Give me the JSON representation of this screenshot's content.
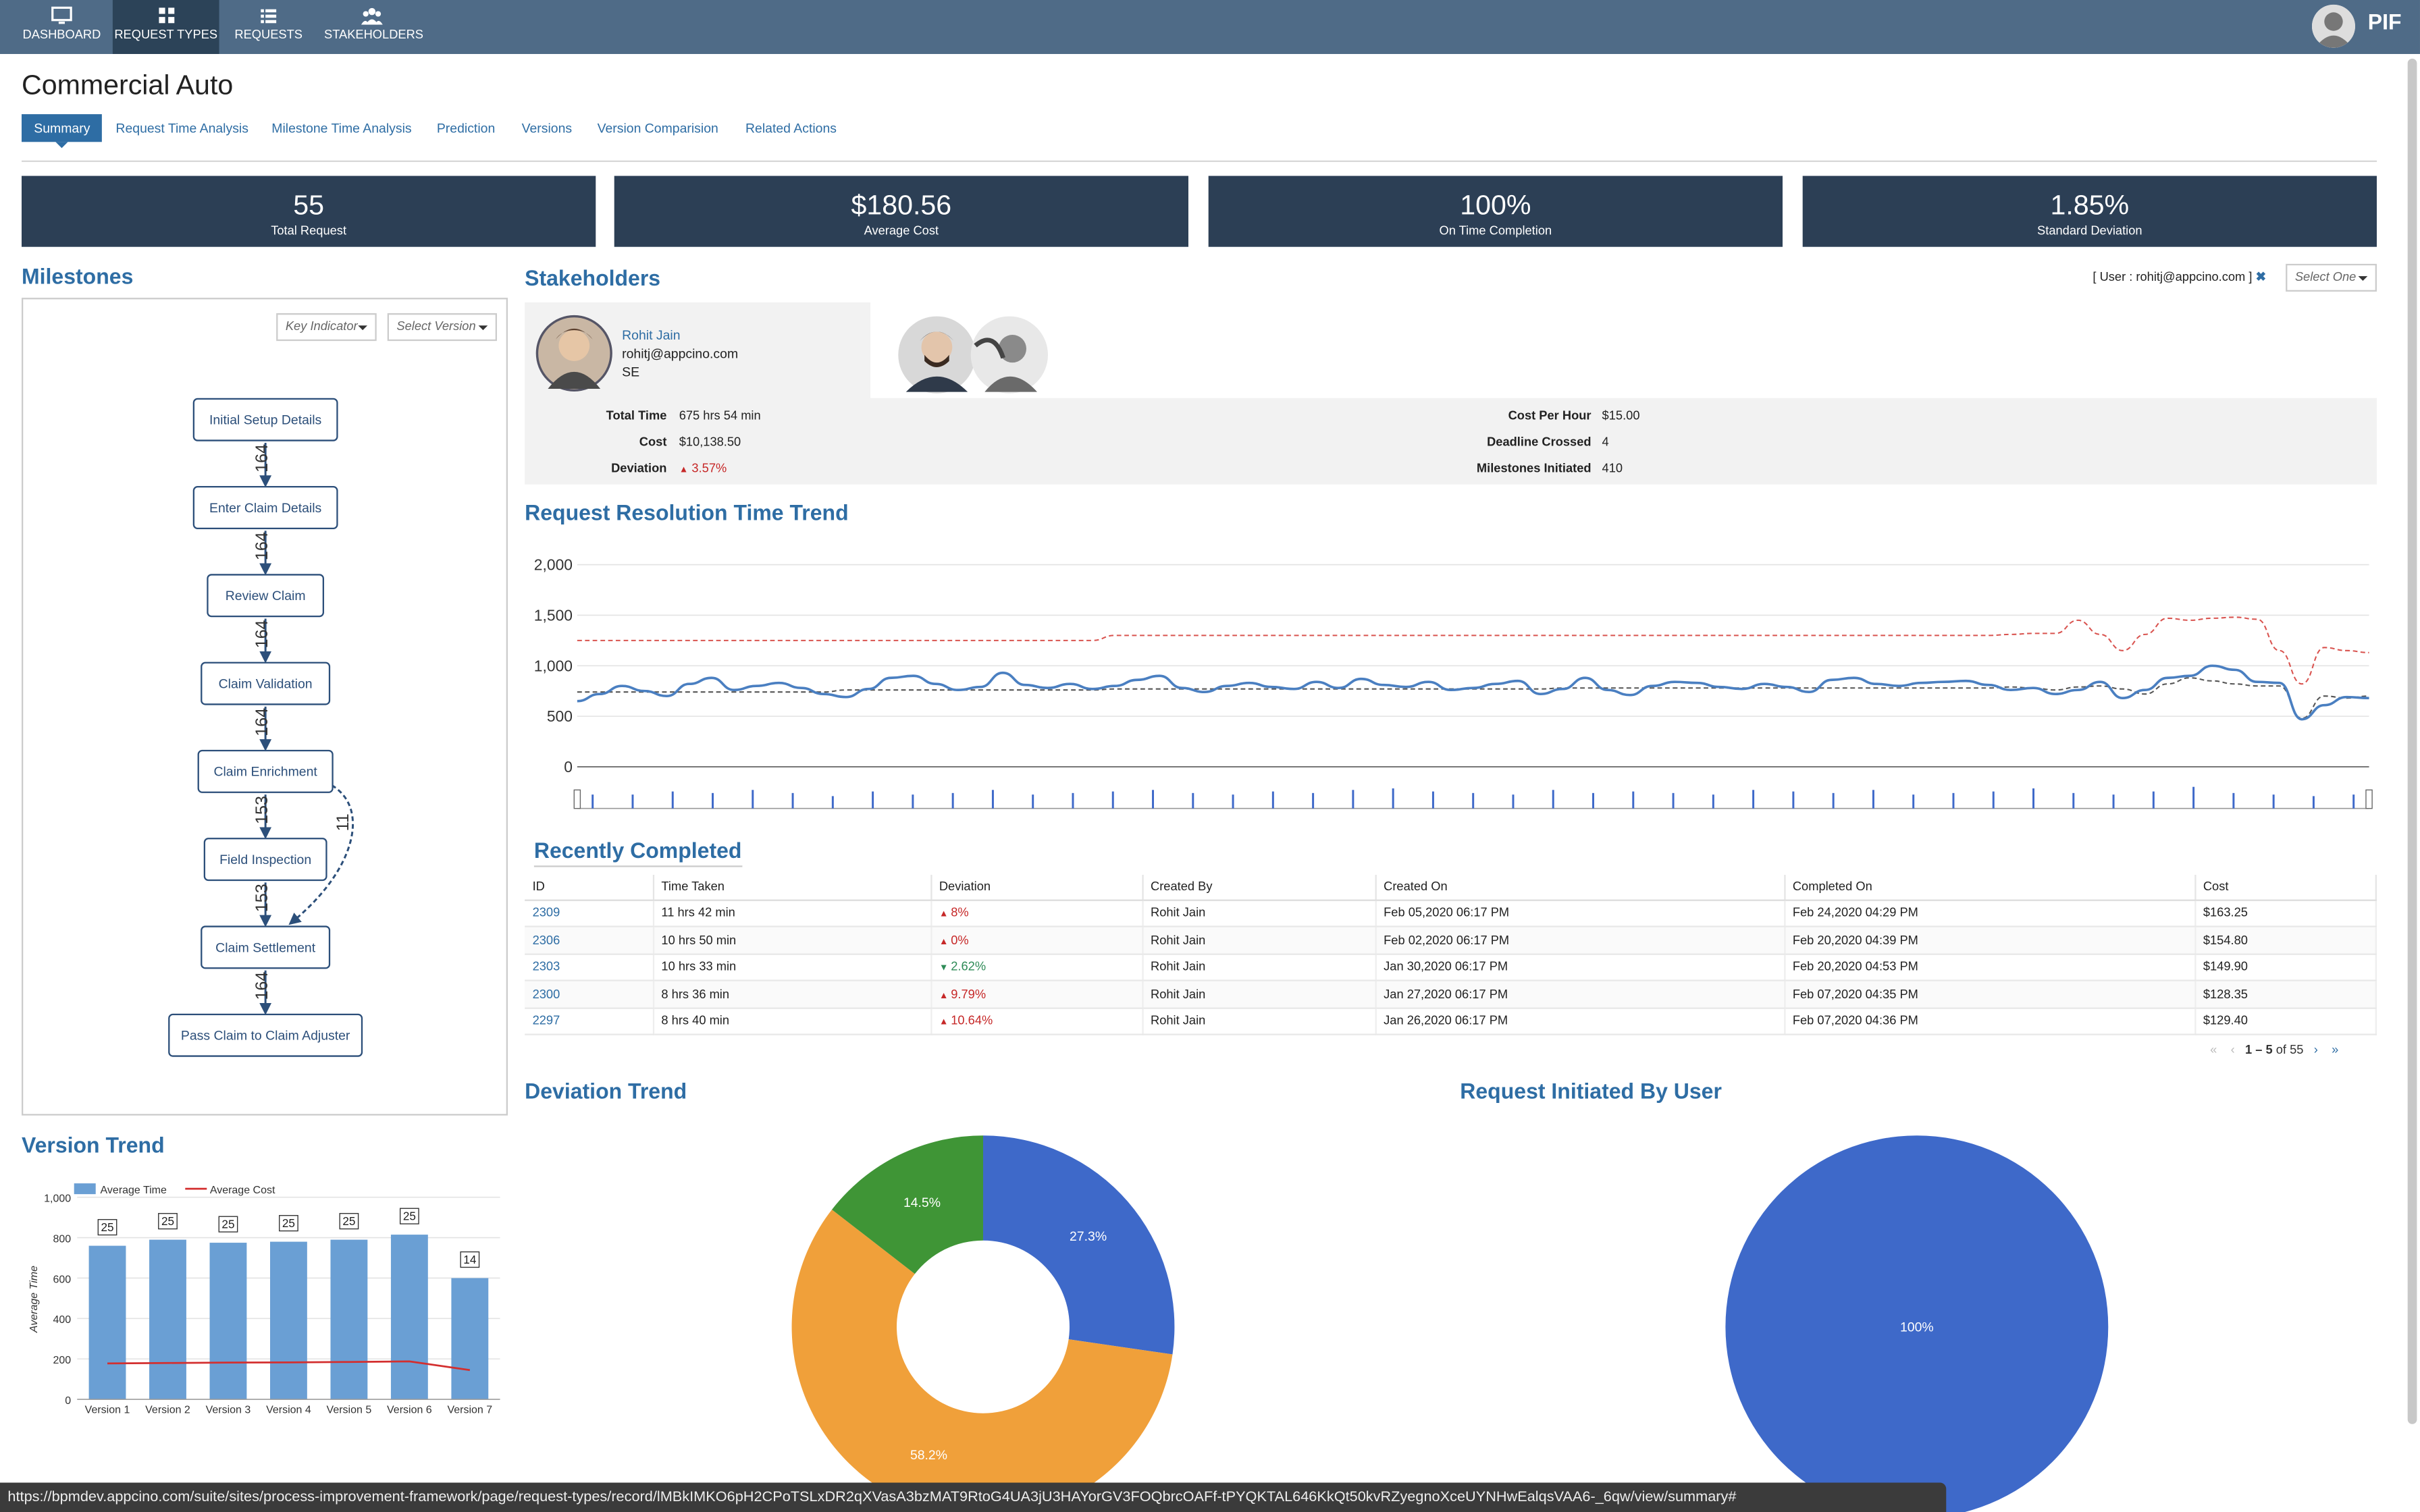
{
  "nav": {
    "items": [
      {
        "label": "DASHBOARD",
        "icon": "monitor-icon"
      },
      {
        "label": "REQUEST TYPES",
        "icon": "grid-icon"
      },
      {
        "label": "REQUESTS",
        "icon": "list-icon"
      },
      {
        "label": "STAKEHOLDERS",
        "icon": "users-icon"
      }
    ],
    "active": "REQUEST TYPES",
    "brand": "PIF"
  },
  "page": {
    "title": "Commercial Auto"
  },
  "tabs": [
    "Summary",
    "Request Time Analysis",
    "Milestone Time Analysis",
    "Prediction",
    "Versions",
    "Version Comparision",
    "Related Actions"
  ],
  "kpis": [
    {
      "value": "55",
      "label": "Total Request"
    },
    {
      "value": "$180.56",
      "label": "Average Cost"
    },
    {
      "value": "100%",
      "label": "On Time Completion"
    },
    {
      "value": "1.85%",
      "label": "Standard Deviation"
    }
  ],
  "milestones": {
    "title": "Milestones",
    "key_indicator_placeholder": "Key Indicator",
    "version_placeholder": "Select Version",
    "nodes": [
      "Initial Setup Details",
      "Enter Claim Details",
      "Review Claim",
      "Claim Validation",
      "Claim Enrichment",
      "Field Inspection",
      "Claim Settlement",
      "Pass Claim to Claim Adjuster"
    ],
    "edges": [
      "164",
      "164",
      "164",
      "164",
      "153",
      "153",
      "164"
    ],
    "bypass_edge": "11"
  },
  "stakeholders": {
    "title": "Stakeholders",
    "user_filter": "[ User : rohitj@appcino.com ]",
    "select_placeholder": "Select One",
    "person": {
      "name": "Rohit Jain",
      "email": "rohitj@appcino.com",
      "role": "SE"
    },
    "stats_left": [
      {
        "label": "Total Time",
        "value": "675 hrs 54 min"
      },
      {
        "label": "Cost",
        "value": "$10,138.50"
      },
      {
        "label": "Deviation",
        "value": "3.57%"
      }
    ],
    "stats_right": [
      {
        "label": "Cost Per Hour",
        "value": "$15.00"
      },
      {
        "label": "Deadline Crossed",
        "value": "4"
      },
      {
        "label": "Milestones Initiated",
        "value": "410"
      }
    ]
  },
  "trend": {
    "title": "Request Resolution Time Trend",
    "y_ticks": [
      "2,000",
      "1,500",
      "1,000",
      "500",
      "0"
    ]
  },
  "recent": {
    "title": "Recently Completed",
    "columns": [
      "ID",
      "Time Taken",
      "Deviation",
      "Created By",
      "Created On",
      "Completed On",
      "Cost"
    ],
    "rows": [
      {
        "id": "2309",
        "time": "11 hrs 42 min",
        "dev": "8%",
        "dir": "up",
        "by": "Rohit Jain",
        "created": "Feb 05,2020 06:17 PM",
        "completed": "Feb 24,2020 04:29 PM",
        "cost": "$163.25"
      },
      {
        "id": "2306",
        "time": "10 hrs 50 min",
        "dev": "0%",
        "dir": "up",
        "by": "Rohit Jain",
        "created": "Feb 02,2020 06:17 PM",
        "completed": "Feb 20,2020 04:39 PM",
        "cost": "$154.80"
      },
      {
        "id": "2303",
        "time": "10 hrs 33 min",
        "dev": "2.62%",
        "dir": "down",
        "by": "Rohit Jain",
        "created": "Jan 30,2020 06:17 PM",
        "completed": "Feb 20,2020 04:53 PM",
        "cost": "$149.90"
      },
      {
        "id": "2300",
        "time": "8 hrs 36 min",
        "dev": "9.79%",
        "dir": "up",
        "by": "Rohit Jain",
        "created": "Jan 27,2020 06:17 PM",
        "completed": "Feb 07,2020 04:35 PM",
        "cost": "$128.35"
      },
      {
        "id": "2297",
        "time": "8 hrs 40 min",
        "dev": "10.64%",
        "dir": "up",
        "by": "Rohit Jain",
        "created": "Jan 26,2020 06:17 PM",
        "completed": "Feb 07,2020 04:36 PM",
        "cost": "$129.40"
      }
    ],
    "pager_range": "1 – 5",
    "pager_total": "of 55"
  },
  "version_trend": {
    "title": "Version Trend"
  },
  "deviation": {
    "title": "Deviation Trend"
  },
  "initiated": {
    "title": "Request Initiated By User"
  },
  "statusbar": {
    "url": "https://bpmdev.appcino.com/suite/sites/process-improvement-framework/page/request-types/record/lMBkIMKO6pH2CPoTSLxDR2qXVasA3bzMAT9RtoG4UA3jU3HAYorGV3FOQbrcOAFf-tPYQKTAL646KkQt50kvRZyegnoXceUYNHwEalqsVAA6-_6qw/view/summary#"
  },
  "chart_data": [
    {
      "type": "bar",
      "title": "Version Trend",
      "categories": [
        "Version 1",
        "Version 2",
        "Version 3",
        "Version 4",
        "Version 5",
        "Version 6",
        "Version 7"
      ],
      "series": [
        {
          "name": "Average Time",
          "type": "bar",
          "values": [
            760,
            790,
            775,
            780,
            790,
            815,
            600
          ]
        },
        {
          "name": "Average Cost",
          "type": "line",
          "values": [
            178,
            180,
            182,
            183,
            185,
            188,
            145
          ]
        }
      ],
      "data_labels": [
        "25",
        "25",
        "25",
        "25",
        "25",
        "25",
        "14"
      ],
      "ylabel": "Average Time",
      "ylim": [
        0,
        1000
      ],
      "y_ticks": [
        "0",
        "200",
        "400",
        "600",
        "800",
        "1,000"
      ],
      "legend": "top-left",
      "colors": {
        "bar": "#6a9fd4",
        "line": "#d32f2f"
      }
    },
    {
      "type": "pie",
      "title": "Deviation Trend",
      "donut": true,
      "slices": [
        {
          "value": 27.3,
          "label": "27.3%",
          "color": "#3e69c9"
        },
        {
          "value": 58.2,
          "label": "58.2%",
          "color": "#f0a03a"
        },
        {
          "value": 14.5,
          "label": "14.5%",
          "color": "#3f9536"
        }
      ]
    },
    {
      "type": "pie",
      "title": "Request Initiated By User",
      "slices": [
        {
          "value": 100,
          "label": "100%",
          "color": "#3e69c9"
        }
      ]
    },
    {
      "type": "line",
      "title": "Request Resolution Time Trend",
      "ylim": [
        0,
        2000
      ],
      "y_ticks": [
        0,
        500,
        1000,
        1500,
        2000
      ],
      "series": [
        {
          "name": "threshold",
          "style": "dashed",
          "color": "#d9534f",
          "values": [
            1250,
            1250,
            1250,
            1250,
            1250,
            1250,
            1250,
            1250,
            1250,
            1250,
            1250,
            1250,
            1250,
            1250,
            1250,
            1250,
            1250,
            1250,
            1250,
            1250,
            1250,
            1250,
            1250,
            1250,
            1300,
            1300,
            1300,
            1300,
            1300,
            1300,
            1300,
            1300,
            1300,
            1300,
            1300,
            1300,
            1300,
            1300,
            1300,
            1300,
            1300,
            1300,
            1300,
            1300,
            1300,
            1300,
            1300,
            1300,
            1300,
            1300,
            1300,
            1300,
            1300,
            1300,
            1300,
            1300,
            1300,
            1300,
            1300,
            1300,
            1300,
            1300,
            1300,
            1300,
            1310,
            1320,
            1320,
            1450,
            1310,
            1150,
            1310,
            1470,
            1450,
            1470,
            1480,
            1460,
            1150,
            820,
            1180,
            1150,
            1130
          ]
        },
        {
          "name": "avg",
          "style": "dashed",
          "color": "#555555",
          "values": [
            740,
            740,
            740,
            740,
            740,
            740,
            740,
            740,
            740,
            740,
            740,
            740,
            760,
            760,
            760,
            760,
            760,
            760,
            760,
            760,
            760,
            760,
            760,
            760,
            770,
            770,
            770,
            770,
            770,
            770,
            770,
            770,
            770,
            770,
            770,
            770,
            770,
            770,
            770,
            770,
            770,
            770,
            770,
            770,
            780,
            780,
            780,
            780,
            780,
            780,
            780,
            780,
            780,
            780,
            780,
            780,
            780,
            780,
            780,
            780,
            780,
            780,
            780,
            780,
            790,
            780,
            760,
            790,
            800,
            770,
            720,
            820,
            880,
            850,
            820,
            800,
            800,
            480,
            700,
            680,
            700
          ]
        },
        {
          "name": "actual",
          "style": "solid",
          "color": "#4a7fc1",
          "values": [
            650,
            720,
            800,
            750,
            700,
            820,
            880,
            760,
            800,
            830,
            780,
            720,
            690,
            770,
            880,
            900,
            820,
            760,
            790,
            930,
            810,
            780,
            820,
            770,
            800,
            860,
            900,
            780,
            740,
            800,
            830,
            790,
            770,
            840,
            780,
            870,
            810,
            790,
            840,
            760,
            780,
            820,
            850,
            720,
            770,
            880,
            760,
            710,
            800,
            840,
            830,
            790,
            770,
            820,
            790,
            740,
            860,
            880,
            820,
            800,
            830,
            840,
            850,
            810,
            760,
            780,
            720,
            760,
            840,
            680,
            760,
            880,
            900,
            1000,
            960,
            840,
            830,
            470,
            610,
            690,
            680
          ]
        }
      ]
    }
  ]
}
